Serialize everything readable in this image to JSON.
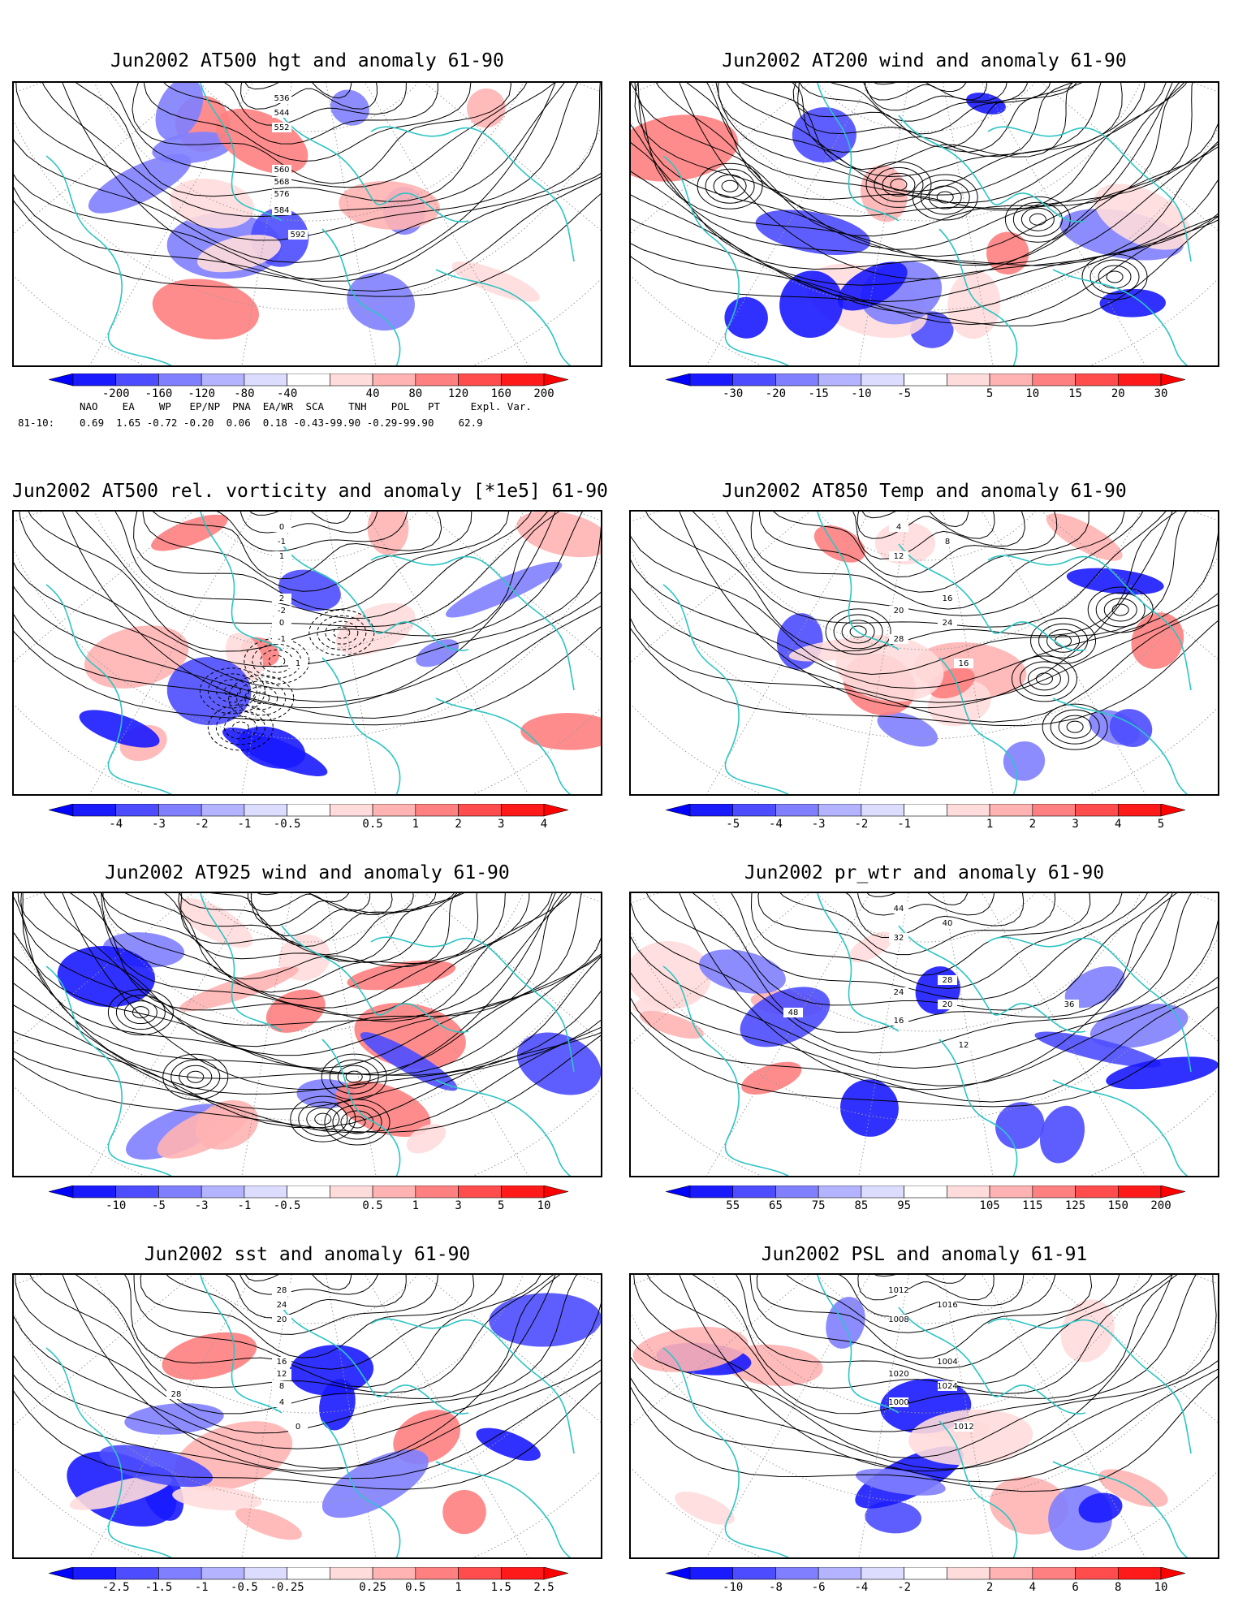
{
  "colors": {
    "coast": "#2ec4c4",
    "contour": "#000000",
    "grid": "#9a9a9a",
    "neg": [
      "#1a1aff",
      "#4d4dff",
      "#8080ff",
      "#b3b3ff",
      "#dcdcff"
    ],
    "pos": [
      "#ffdcdc",
      "#ffb3b3",
      "#ff8080",
      "#ff4d4d",
      "#ff1a1a"
    ]
  },
  "panels": [
    {
      "title": "Jun2002 AT500 hgt and anomaly 61-90",
      "variant": "hgt",
      "contour_labels": [
        "536",
        "544",
        "552",
        "560",
        "568",
        "576",
        "584",
        "592"
      ],
      "colorbar": [
        "-200",
        "-160",
        "-120",
        "-80",
        "-40",
        "40",
        "80",
        "120",
        "160",
        "200"
      ]
    },
    {
      "title": "Jun2002 AT200 wind and anomaly 61-90",
      "variant": "stream",
      "contour_labels": [],
      "colorbar": [
        "-30",
        "-20",
        "-15",
        "-10",
        "-5",
        "5",
        "10",
        "15",
        "20",
        "30"
      ]
    },
    {
      "title": "Jun2002 AT500 rel. vorticity and anomaly [*1e5] 61-90",
      "variant": "vort",
      "contour_labels": [
        "0",
        "-1",
        "1",
        "2",
        "-2",
        "0",
        "-1",
        "1"
      ],
      "colorbar": [
        "-4",
        "-3",
        "-2",
        "-1",
        "-0.5",
        "0.5",
        "1",
        "2",
        "3",
        "4"
      ]
    },
    {
      "title": "Jun2002 AT850 Temp and anomaly 61-90",
      "variant": "temp",
      "contour_labels": [
        "4",
        "8",
        "12",
        "16",
        "20",
        "24",
        "28",
        "16"
      ],
      "colorbar": [
        "-5",
        "-4",
        "-3",
        "-2",
        "-1",
        "1",
        "2",
        "3",
        "4",
        "5"
      ]
    },
    {
      "title": "Jun2002 AT925 wind and anomaly 61-90",
      "variant": "stream",
      "contour_labels": [],
      "colorbar": [
        "-10",
        "-5",
        "-3",
        "-1",
        "-0.5",
        "0.5",
        "1",
        "3",
        "5",
        "10"
      ]
    },
    {
      "title": "Jun2002 pr_wtr and anomaly 61-90",
      "variant": "prwtr",
      "contour_labels": [
        "44",
        "40",
        "32",
        "28",
        "24",
        "20",
        "16",
        "12",
        "48",
        "36"
      ],
      "colorbar": [
        "55",
        "65",
        "75",
        "85",
        "95",
        "105",
        "115",
        "125",
        "150",
        "200"
      ]
    },
    {
      "title": "Jun2002 sst and anomaly 61-90",
      "variant": "sst",
      "contour_labels": [
        "28",
        "24",
        "20",
        "16",
        "12",
        "8",
        "4",
        "0",
        "28"
      ],
      "colorbar": [
        "-2.5",
        "-1.5",
        "-1",
        "-0.5",
        "-0.25",
        "0.25",
        "0.5",
        "1",
        "1.5",
        "2.5"
      ]
    },
    {
      "title": "Jun2002 PSL and anomaly 61-91",
      "variant": "psl",
      "contour_labels": [
        "1012",
        "1016",
        "1008",
        "1004",
        "1020",
        "1024",
        "1000",
        "1012"
      ],
      "colorbar": [
        "-10",
        "-8",
        "-6",
        "-4",
        "-2",
        "2",
        "4",
        "6",
        "8",
        "10"
      ]
    }
  ],
  "indices": {
    "header": "NAO    EA    WP   EP/NP  PNA  EA/WR  SCA    TNH    POL   PT     Expl. Var.",
    "row_label": "81-10:",
    "values": "0.69  1.65 -0.72 -0.20  0.06  0.18 -0.43-99.90 -0.29-99.90    62.9"
  }
}
